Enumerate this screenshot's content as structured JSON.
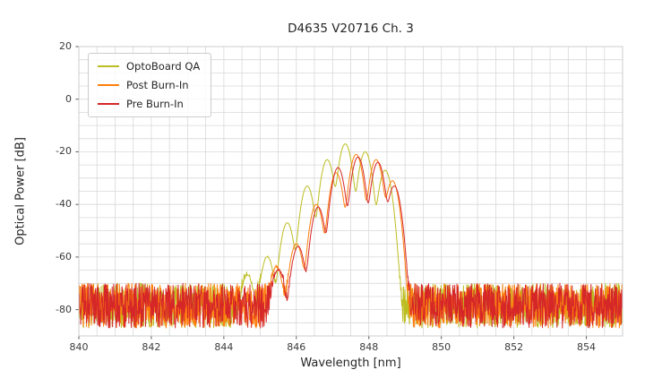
{
  "chart_data": {
    "type": "line",
    "title": "D4635 V20716 Ch. 3",
    "xlabel": "Wavelength [nm]",
    "ylabel": "Optical Power [dB]",
    "xlim": [
      840,
      855
    ],
    "ylim": [
      -90,
      20
    ],
    "xticks": [
      840,
      842,
      844,
      846,
      848,
      850,
      852,
      854
    ],
    "yticks": [
      20,
      0,
      -20,
      -40,
      -60,
      -80
    ],
    "grid": true,
    "grid_step_x": 0.5,
    "grid_step_y": 5,
    "grid_color": "#d8d8d8",
    "legend_position": "upper left",
    "background": "#ffffff",
    "series": [
      {
        "name": "OptoBoard QA",
        "color": "#bcbd22",
        "noise_floor_db": -78.5,
        "noise_spread_db": 17,
        "mode_width_nm": 0.13,
        "modes": [
          [
            844.65,
            -67
          ],
          [
            845.2,
            -60
          ],
          [
            845.75,
            -47
          ],
          [
            846.3,
            -33
          ],
          [
            846.85,
            -23
          ],
          [
            847.35,
            -17
          ],
          [
            847.9,
            -20
          ],
          [
            848.45,
            -27
          ]
        ]
      },
      {
        "name": "Post Burn-In",
        "color": "#ff7f0e",
        "noise_floor_db": -78.5,
        "noise_spread_db": 17,
        "mode_width_nm": 0.13,
        "modes": [
          [
            845.45,
            -64
          ],
          [
            846.0,
            -55
          ],
          [
            846.55,
            -40
          ],
          [
            847.1,
            -28
          ],
          [
            847.65,
            -21
          ],
          [
            848.2,
            -23
          ],
          [
            848.65,
            -31
          ]
        ]
      },
      {
        "name": "Pre Burn-In",
        "color": "#d62728",
        "noise_floor_db": -78.5,
        "noise_spread_db": 17,
        "mode_width_nm": 0.13,
        "modes": [
          [
            845.5,
            -65
          ],
          [
            846.05,
            -56
          ],
          [
            846.6,
            -41
          ],
          [
            847.15,
            -26
          ],
          [
            847.7,
            -22
          ],
          [
            848.25,
            -24
          ],
          [
            848.7,
            -33
          ]
        ]
      }
    ]
  }
}
